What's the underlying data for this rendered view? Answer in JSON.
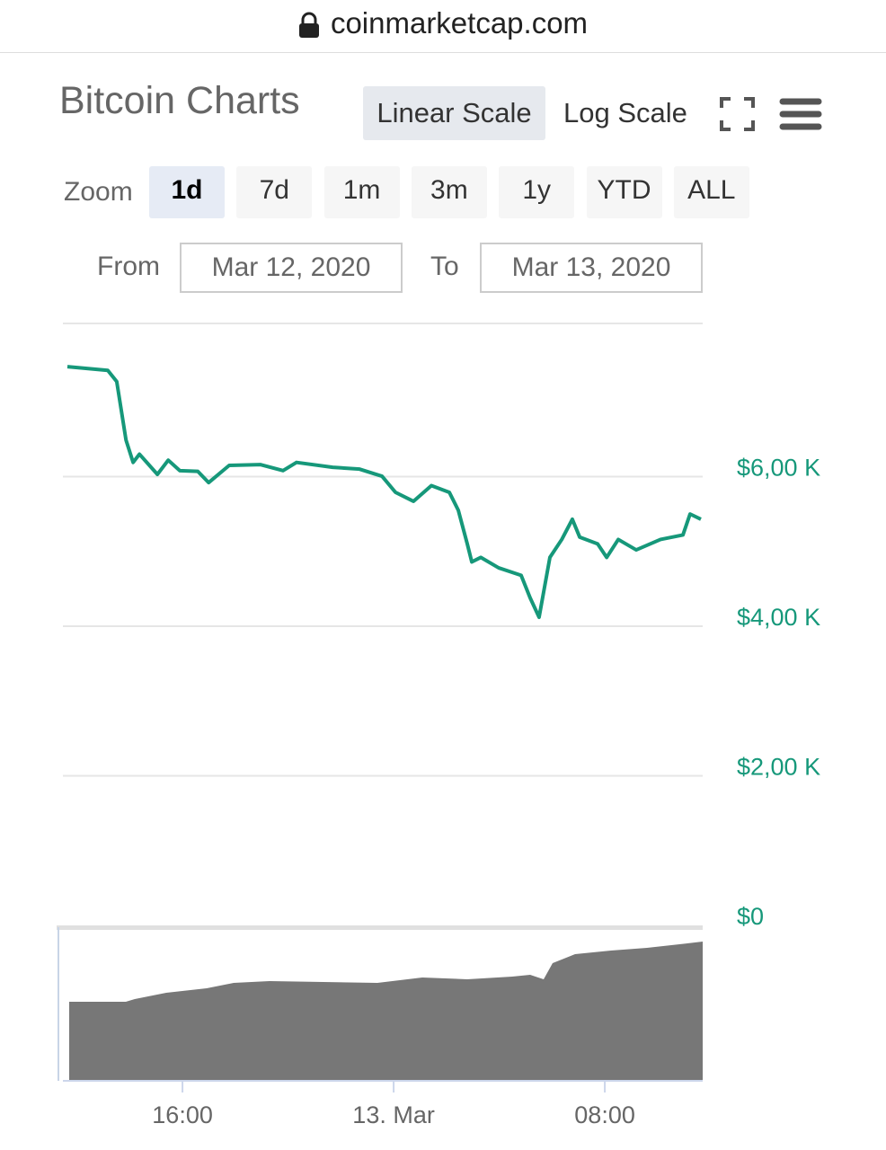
{
  "browser": {
    "url": "coinmarketcap.com"
  },
  "header": {
    "title": "Bitcoin Charts",
    "scale_buttons": [
      "Linear Scale",
      "Log Scale"
    ]
  },
  "zoom": {
    "label": "Zoom",
    "options": [
      "1d",
      "7d",
      "1m",
      "3m",
      "1y",
      "YTD",
      "ALL"
    ]
  },
  "range": {
    "from_label": "From",
    "from": "Mar 12, 2020",
    "to_label": "To",
    "to": "Mar 13, 2020"
  },
  "chart": {
    "type": "line",
    "x": [
      11.64,
      13.17,
      13.51,
      13.86,
      14.13,
      14.37,
      15.05,
      15.46,
      15.9,
      16.58,
      16.99,
      17.77,
      18.96,
      19.81,
      20.32,
      21.69,
      22.71,
      23.56,
      24.07,
      24.75,
      25.43,
      26.11,
      26.45,
      26.79,
      26.96,
      27.3,
      27.98,
      28.83,
      29.17,
      29.51,
      29.92,
      30.37,
      30.77,
      31.05,
      31.73,
      32.07,
      32.51,
      33.19,
      34.11,
      34.96,
      35.23,
      35.64
    ],
    "series": [
      {
        "color": "#16987a",
        "values": [
          7470,
          7420,
          7270,
          6490,
          6190,
          6300,
          6030,
          6220,
          6080,
          6070,
          5920,
          6150,
          6160,
          6080,
          6190,
          6125,
          6100,
          6005,
          5790,
          5670,
          5880,
          5790,
          5550,
          5100,
          4860,
          4920,
          4780,
          4680,
          4380,
          4120,
          4920,
          5160,
          5430,
          5190,
          5100,
          4920,
          5160,
          5020,
          5160,
          5220,
          5500,
          5430
        ]
      }
    ],
    "xlim": [
      11.64,
      35.64
    ],
    "xticks": [
      {
        "value": 16,
        "label": "16:00"
      },
      {
        "value": 24,
        "label": "13. Mar"
      },
      {
        "value": 32,
        "label": "08:00"
      }
    ],
    "ylim": [
      0,
      8000
    ],
    "yticks": [
      {
        "value": 0,
        "label": "$0"
      },
      {
        "value": 2000,
        "label": "$2,00 K"
      },
      {
        "value": 4000,
        "label": "$4,00 K"
      },
      {
        "value": 6000,
        "label": "$6,00 K"
      }
    ],
    "grid": true
  }
}
